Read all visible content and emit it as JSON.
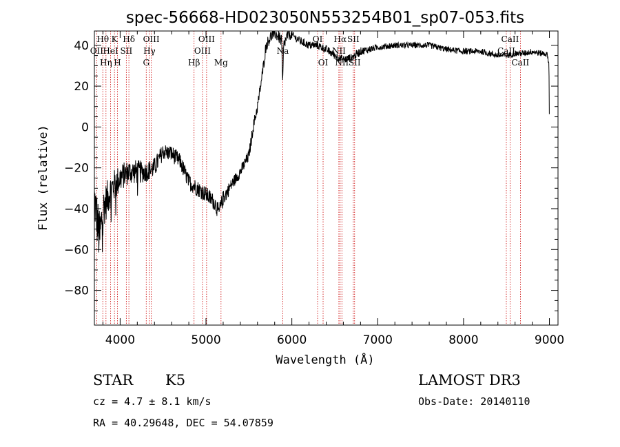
{
  "chart_data": {
    "type": "line",
    "title": "spec-56668-HD023050N553254B01_sp07-053.fits",
    "xlabel": "Wavelength (Å)",
    "ylabel": "Flux (relative)",
    "xlim": [
      3700,
      9100
    ],
    "ylim": [
      -97,
      47
    ],
    "xticks": [
      4000,
      5000,
      6000,
      7000,
      8000,
      9000
    ],
    "yticks": [
      -80,
      -60,
      -40,
      -20,
      0,
      20,
      40
    ],
    "spectrum_anchors": {
      "wavelength": [
        3700,
        3760,
        3800,
        3850,
        3900,
        3950,
        4000,
        4100,
        4200,
        4300,
        4400,
        4500,
        4600,
        4700,
        4800,
        4900,
        5000,
        5100,
        5150,
        5200,
        5300,
        5400,
        5500,
        5550,
        5600,
        5650,
        5700,
        5750,
        5800,
        5850,
        5880,
        5893,
        5905,
        5950,
        6000,
        6100,
        6200,
        6300,
        6400,
        6500,
        6600,
        6700,
        6800,
        7000,
        7200,
        7400,
        7600,
        7800,
        8000,
        8200,
        8400,
        8500,
        8600,
        8700,
        8800,
        8900,
        8950,
        8980,
        8995,
        9000
      ],
      "flux": [
        -35,
        -55,
        -40,
        -35,
        -30,
        -28,
        -25,
        -22,
        -22,
        -22,
        -20,
        -12,
        -13,
        -17,
        -27,
        -30,
        -33,
        -37,
        -42,
        -35,
        -28,
        -22,
        -14,
        0,
        10,
        24,
        40,
        44,
        46,
        44,
        42,
        20,
        40,
        45,
        45,
        42,
        40,
        40,
        38,
        35,
        33,
        34,
        37,
        39,
        40,
        40,
        40,
        38,
        37,
        37,
        35,
        35,
        36,
        36,
        37,
        36,
        36,
        35,
        30,
        3
      ],
      "noise_scale": [
        12,
        14,
        10,
        9,
        8,
        8,
        7,
        6,
        6,
        5,
        5,
        4,
        4,
        4,
        4,
        4,
        4,
        4,
        4,
        4,
        3,
        3,
        3,
        3,
        3,
        3,
        3,
        3,
        3,
        3,
        3,
        3,
        3,
        3,
        2,
        2,
        2,
        2,
        2,
        2,
        2,
        2,
        2,
        1.5,
        1.5,
        1.5,
        1.5,
        1.5,
        1.5,
        1.5,
        1.5,
        1.5,
        1.5,
        1.5,
        1.5,
        1.5,
        1.5,
        1.5,
        1.5,
        1.5
      ]
    },
    "spectral_lines": [
      {
        "wave": 3727,
        "labels": [
          "OII"
        ],
        "row": [
          2
        ]
      },
      {
        "wave": 3798,
        "labels": [
          "Hθ"
        ],
        "row": [
          1
        ]
      },
      {
        "wave": 3835,
        "labels": [
          "Hη"
        ],
        "row": [
          3
        ]
      },
      {
        "wave": 3889,
        "labels": [
          "HeI"
        ],
        "row": [
          2
        ]
      },
      {
        "wave": 3934,
        "labels": [
          "K"
        ],
        "row": [
          1
        ]
      },
      {
        "wave": 3969,
        "labels": [
          "H"
        ],
        "row": [
          3
        ]
      },
      {
        "wave": 4072,
        "labels": [
          "SII"
        ],
        "row": [
          2
        ]
      },
      {
        "wave": 4102,
        "labels": [
          "Hδ"
        ],
        "row": [
          1
        ]
      },
      {
        "wave": 4304,
        "labels": [
          "G"
        ],
        "row": [
          3
        ]
      },
      {
        "wave": 4341,
        "labels": [
          "Hγ"
        ],
        "row": [
          2
        ]
      },
      {
        "wave": 4363,
        "labels": [
          "OIII"
        ],
        "row": [
          1
        ]
      },
      {
        "wave": 4861,
        "labels": [
          "Hβ"
        ],
        "row": [
          3
        ]
      },
      {
        "wave": 4959,
        "labels": [
          "OIII"
        ],
        "row": [
          2
        ]
      },
      {
        "wave": 5007,
        "labels": [
          "OIII"
        ],
        "row": [
          1
        ]
      },
      {
        "wave": 5175,
        "labels": [
          "Mg"
        ],
        "row": [
          3
        ]
      },
      {
        "wave": 5894,
        "labels": [
          "Na"
        ],
        "row": [
          2
        ]
      },
      {
        "wave": 6300,
        "labels": [
          "OI"
        ],
        "row": [
          1
        ]
      },
      {
        "wave": 6364,
        "labels": [
          "OI"
        ],
        "row": [
          3
        ]
      },
      {
        "wave": 6548,
        "labels": [
          "NII"
        ],
        "row": [
          2
        ]
      },
      {
        "wave": 6563,
        "labels": [
          "Hα"
        ],
        "row": [
          1
        ]
      },
      {
        "wave": 6583,
        "labels": [
          "NII"
        ],
        "row": [
          3
        ]
      },
      {
        "wave": 6716,
        "labels": [
          "SII"
        ],
        "row": [
          1
        ]
      },
      {
        "wave": 6731,
        "labels": [
          "SII"
        ],
        "row": [
          3
        ]
      },
      {
        "wave": 8498,
        "labels": [
          "CaII"
        ],
        "row": [
          2
        ]
      },
      {
        "wave": 8542,
        "labels": [
          "CaII"
        ],
        "row": [
          1
        ]
      },
      {
        "wave": 8662,
        "labels": [
          "CaII"
        ],
        "row": [
          3
        ]
      }
    ]
  },
  "info": {
    "object_class": "STAR",
    "subclass": "K5",
    "survey": "LAMOST DR3",
    "redshift_line": "cz = 4.7 ± 8.1 km/s",
    "obs_date": "Obs-Date: 20140110",
    "coords": "RA =  40.29648, DEC =  54.07859"
  },
  "colors": {
    "spectrum": "#000000",
    "line_marker": "#cc0000",
    "axes": "#000000"
  }
}
